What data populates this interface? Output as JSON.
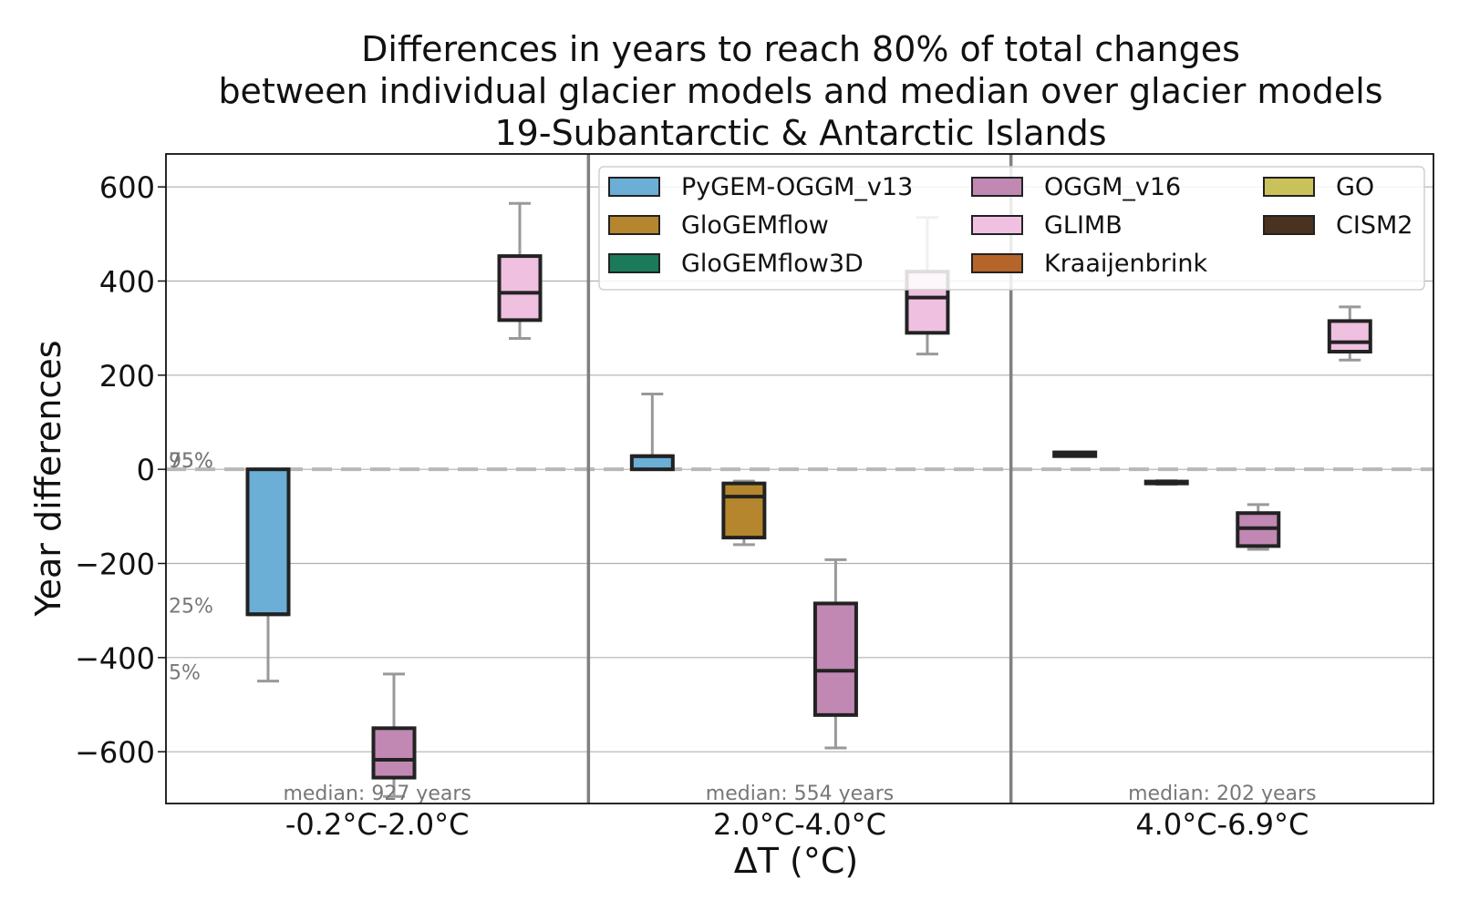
{
  "chart_data": {
    "type": "box",
    "title_lines": [
      "Differences in years to reach 80% of total changes",
      "between individual glacier models and median over glacier models",
      "19-Subantarctic & Antarctic Islands"
    ],
    "xlabel": "ΔT (°C)",
    "ylabel": "Year differences",
    "ylim": [
      -710,
      670
    ],
    "yticks": [
      -600,
      -400,
      -200,
      0,
      200,
      400,
      600
    ],
    "ytick_labels": [
      "−600",
      "−400",
      "−200",
      "0",
      "200",
      "400",
      "600"
    ],
    "grid": true,
    "legend_position": "top-right",
    "percentile_labels": {
      "p95": "95%",
      "p75": "75%",
      "p25": "25%",
      "p5": "5%"
    },
    "models": [
      {
        "name": "PyGEM-OGGM_v13",
        "color": "#6baed6"
      },
      {
        "name": "GloGEMflow",
        "color": "#b5862e"
      },
      {
        "name": "GloGEMflow3D",
        "color": "#1b7a5a"
      },
      {
        "name": "OGGM_v16",
        "color": "#c088b3"
      },
      {
        "name": "GLIMB",
        "color": "#f0c0e0"
      },
      {
        "name": "Kraaijenbrink",
        "color": "#b5652a"
      },
      {
        "name": "GO",
        "color": "#c9c25a"
      },
      {
        "name": "CISM2",
        "color": "#4a3220"
      }
    ],
    "groups": [
      {
        "label": "-0.2°C-2.0°C",
        "median_label": "median: 927 years",
        "boxes": [
          {
            "model": "PyGEM-OGGM_v13",
            "p5": -450,
            "q1": -308,
            "median": -308,
            "q3": 0,
            "p95": 0
          },
          {
            "model": "OGGM_v16",
            "p5": -695,
            "q1": -655,
            "median": -617,
            "q3": -550,
            "p95": -435
          },
          {
            "model": "GLIMB",
            "p5": 278,
            "q1": 317,
            "median": 375,
            "q3": 453,
            "p95": 565
          }
        ]
      },
      {
        "label": "2.0°C-4.0°C",
        "median_label": "median: 554 years",
        "boxes": [
          {
            "model": "PyGEM-OGGM_v13",
            "p5": 0,
            "q1": 0,
            "median": 28,
            "q3": 28,
            "p95": 160
          },
          {
            "model": "GloGEMflow",
            "p5": -160,
            "q1": -145,
            "median": -58,
            "q3": -30,
            "p95": -25
          },
          {
            "model": "OGGM_v16",
            "p5": -592,
            "q1": -522,
            "median": -428,
            "q3": -285,
            "p95": -192
          },
          {
            "model": "GLIMB",
            "p5": 245,
            "q1": 290,
            "median": 365,
            "q3": 420,
            "p95": 535
          }
        ]
      },
      {
        "label": "4.0°C-6.9°C",
        "median_label": "median: 202 years",
        "boxes": [
          {
            "model": "CISM2",
            "p5": 28,
            "q1": 28,
            "median": 32,
            "q3": 36,
            "p95": 36
          },
          {
            "model": "CISM2",
            "p5": -32,
            "q1": -30,
            "median": -28,
            "q3": -26,
            "p95": -24
          },
          {
            "model": "OGGM_v16",
            "p5": -170,
            "q1": -163,
            "median": -125,
            "q3": -93,
            "p95": -75
          },
          {
            "model": "GLIMB",
            "p5": 232,
            "q1": 250,
            "median": 270,
            "q3": 315,
            "p95": 345
          }
        ]
      }
    ]
  }
}
